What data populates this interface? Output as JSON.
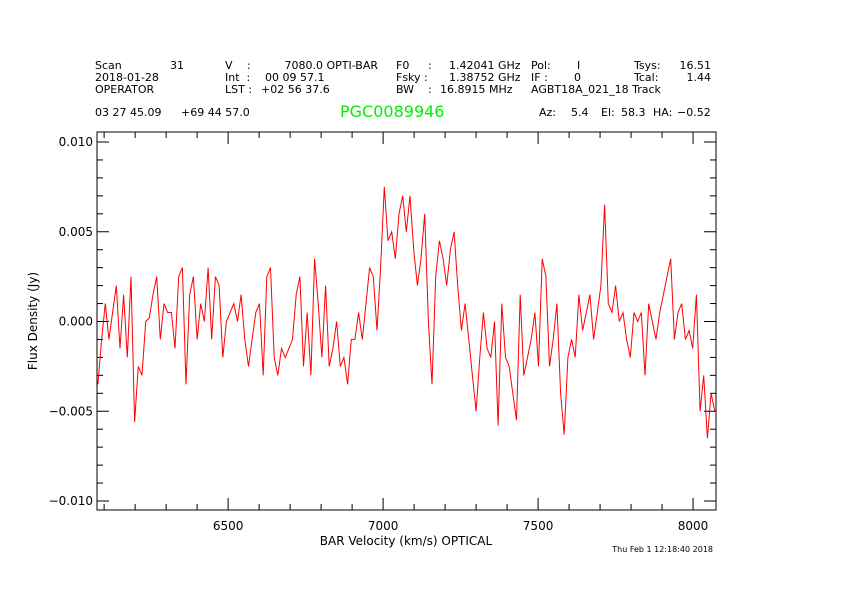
{
  "header": {
    "scan_label": "Scan",
    "scan_value": "31",
    "date": "2018-01-28",
    "observer": "OPERATOR",
    "v_label": "V",
    "v_colon": ":",
    "v_value": "7080.0 OPTI-BAR",
    "int_label": "Int  :",
    "int_value": "00 09 57.1",
    "lst_label": "LST :",
    "lst_value": "+02 56 37.6",
    "f0_label": "F0",
    "f0_colon": ":",
    "f0_value": "1.42041 GHz",
    "fsky_label": "Fsky :",
    "fsky_value": "1.38752 GHz",
    "bw_label": "BW",
    "bw_colon": ":",
    "bw_value": "16.8915 MHz",
    "pol_label": "Pol:",
    "pol_value": "I",
    "if_label": "IF :",
    "if_value": "0",
    "project": "AGBT18A_021_18 Track",
    "tsys_label": "Tsys:",
    "tsys_value": "16.51",
    "tcal_label": "Tcal:",
    "tcal_value": "1.44",
    "ra": "03 27 45.09",
    "dec": "+69 44 57.0",
    "source": "PGC0089946",
    "az_label": "Az:",
    "az_value": "5.4",
    "el_label": "El:",
    "el_value": "58.3",
    "ha_label": "HA:",
    "ha_value": "−0.52",
    "timestamp": "Thu Feb  1 12:18:40 2018"
  },
  "colors": {
    "series": "#ff0000",
    "source": "#00ee00",
    "axes": "#000000"
  },
  "chart_data": {
    "type": "line",
    "xlabel": "BAR Velocity (km/s) OPTICAL",
    "ylabel": "Flux Density (Jy)",
    "xlim": [
      6077,
      8074
    ],
    "ylim": [
      -0.0105,
      0.0105
    ],
    "xticks": [
      6500,
      7000,
      7500,
      8000
    ],
    "xtick_labels": [
      "6500",
      "7000",
      "7500",
      "8000"
    ],
    "yticks": [
      0.01,
      0.005,
      0.0,
      -0.005,
      -0.01
    ],
    "ytick_labels": [
      "0.010",
      "0.005",
      "0.000",
      "−0.005",
      "−0.010"
    ],
    "grid": false,
    "velocity_range": [
      6080,
      8070
    ],
    "values_mJy_scale": 0.001,
    "values": [
      -3.5,
      -1,
      1,
      -1,
      0.5,
      2,
      -1.5,
      1.5,
      -2,
      2.5,
      -5.6,
      -2.5,
      -3,
      0,
      0.2,
      1.5,
      2.5,
      -1,
      1,
      0.5,
      0.5,
      -1.5,
      2.5,
      3,
      -3.5,
      1.5,
      2.5,
      -1,
      1,
      0,
      3,
      -1,
      2.5,
      2,
      -2,
      0,
      0.5,
      1,
      0,
      1.5,
      -1,
      -2.5,
      -1,
      0.5,
      1,
      -3,
      2.5,
      3,
      -2,
      -3,
      -1.5,
      -2,
      -1.5,
      -1,
      1.5,
      2.5,
      -2.5,
      0.5,
      -3,
      3.5,
      1,
      -2,
      2,
      -2.5,
      -1.5,
      0,
      -2.5,
      -2,
      -3.5,
      -1,
      -1,
      0.5,
      -1,
      1,
      3,
      2.5,
      -0.5,
      3,
      7.5,
      4.5,
      5,
      3.5,
      6,
      7,
      5,
      7,
      4,
      2,
      3.5,
      6,
      0,
      -3.5,
      2.5,
      4.5,
      3.5,
      2,
      4,
      5,
      2,
      -0.5,
      1,
      -1,
      -3,
      -5,
      -2,
      0.5,
      -1.5,
      -2,
      0,
      -5.8,
      1,
      -2,
      -2.5,
      -4,
      -5.5,
      1.5,
      -3,
      -2,
      -1,
      0.5,
      -2.5,
      3.5,
      2.5,
      -2.5,
      -1,
      1,
      -4,
      -6.3,
      -2,
      -1,
      -2,
      1.5,
      -0.5,
      0.5,
      1.5,
      -1,
      0.5,
      2,
      6.5,
      1,
      0.5,
      2,
      0,
      0.5,
      -1,
      -2,
      0.5,
      0,
      0.5,
      -3,
      1,
      0,
      -1,
      0.5,
      1.5,
      2.5,
      3.5,
      -1,
      0.5,
      1,
      -1,
      -0.5,
      -1.5,
      1.5,
      -5,
      -3,
      -6.5,
      -4,
      -5
    ]
  }
}
